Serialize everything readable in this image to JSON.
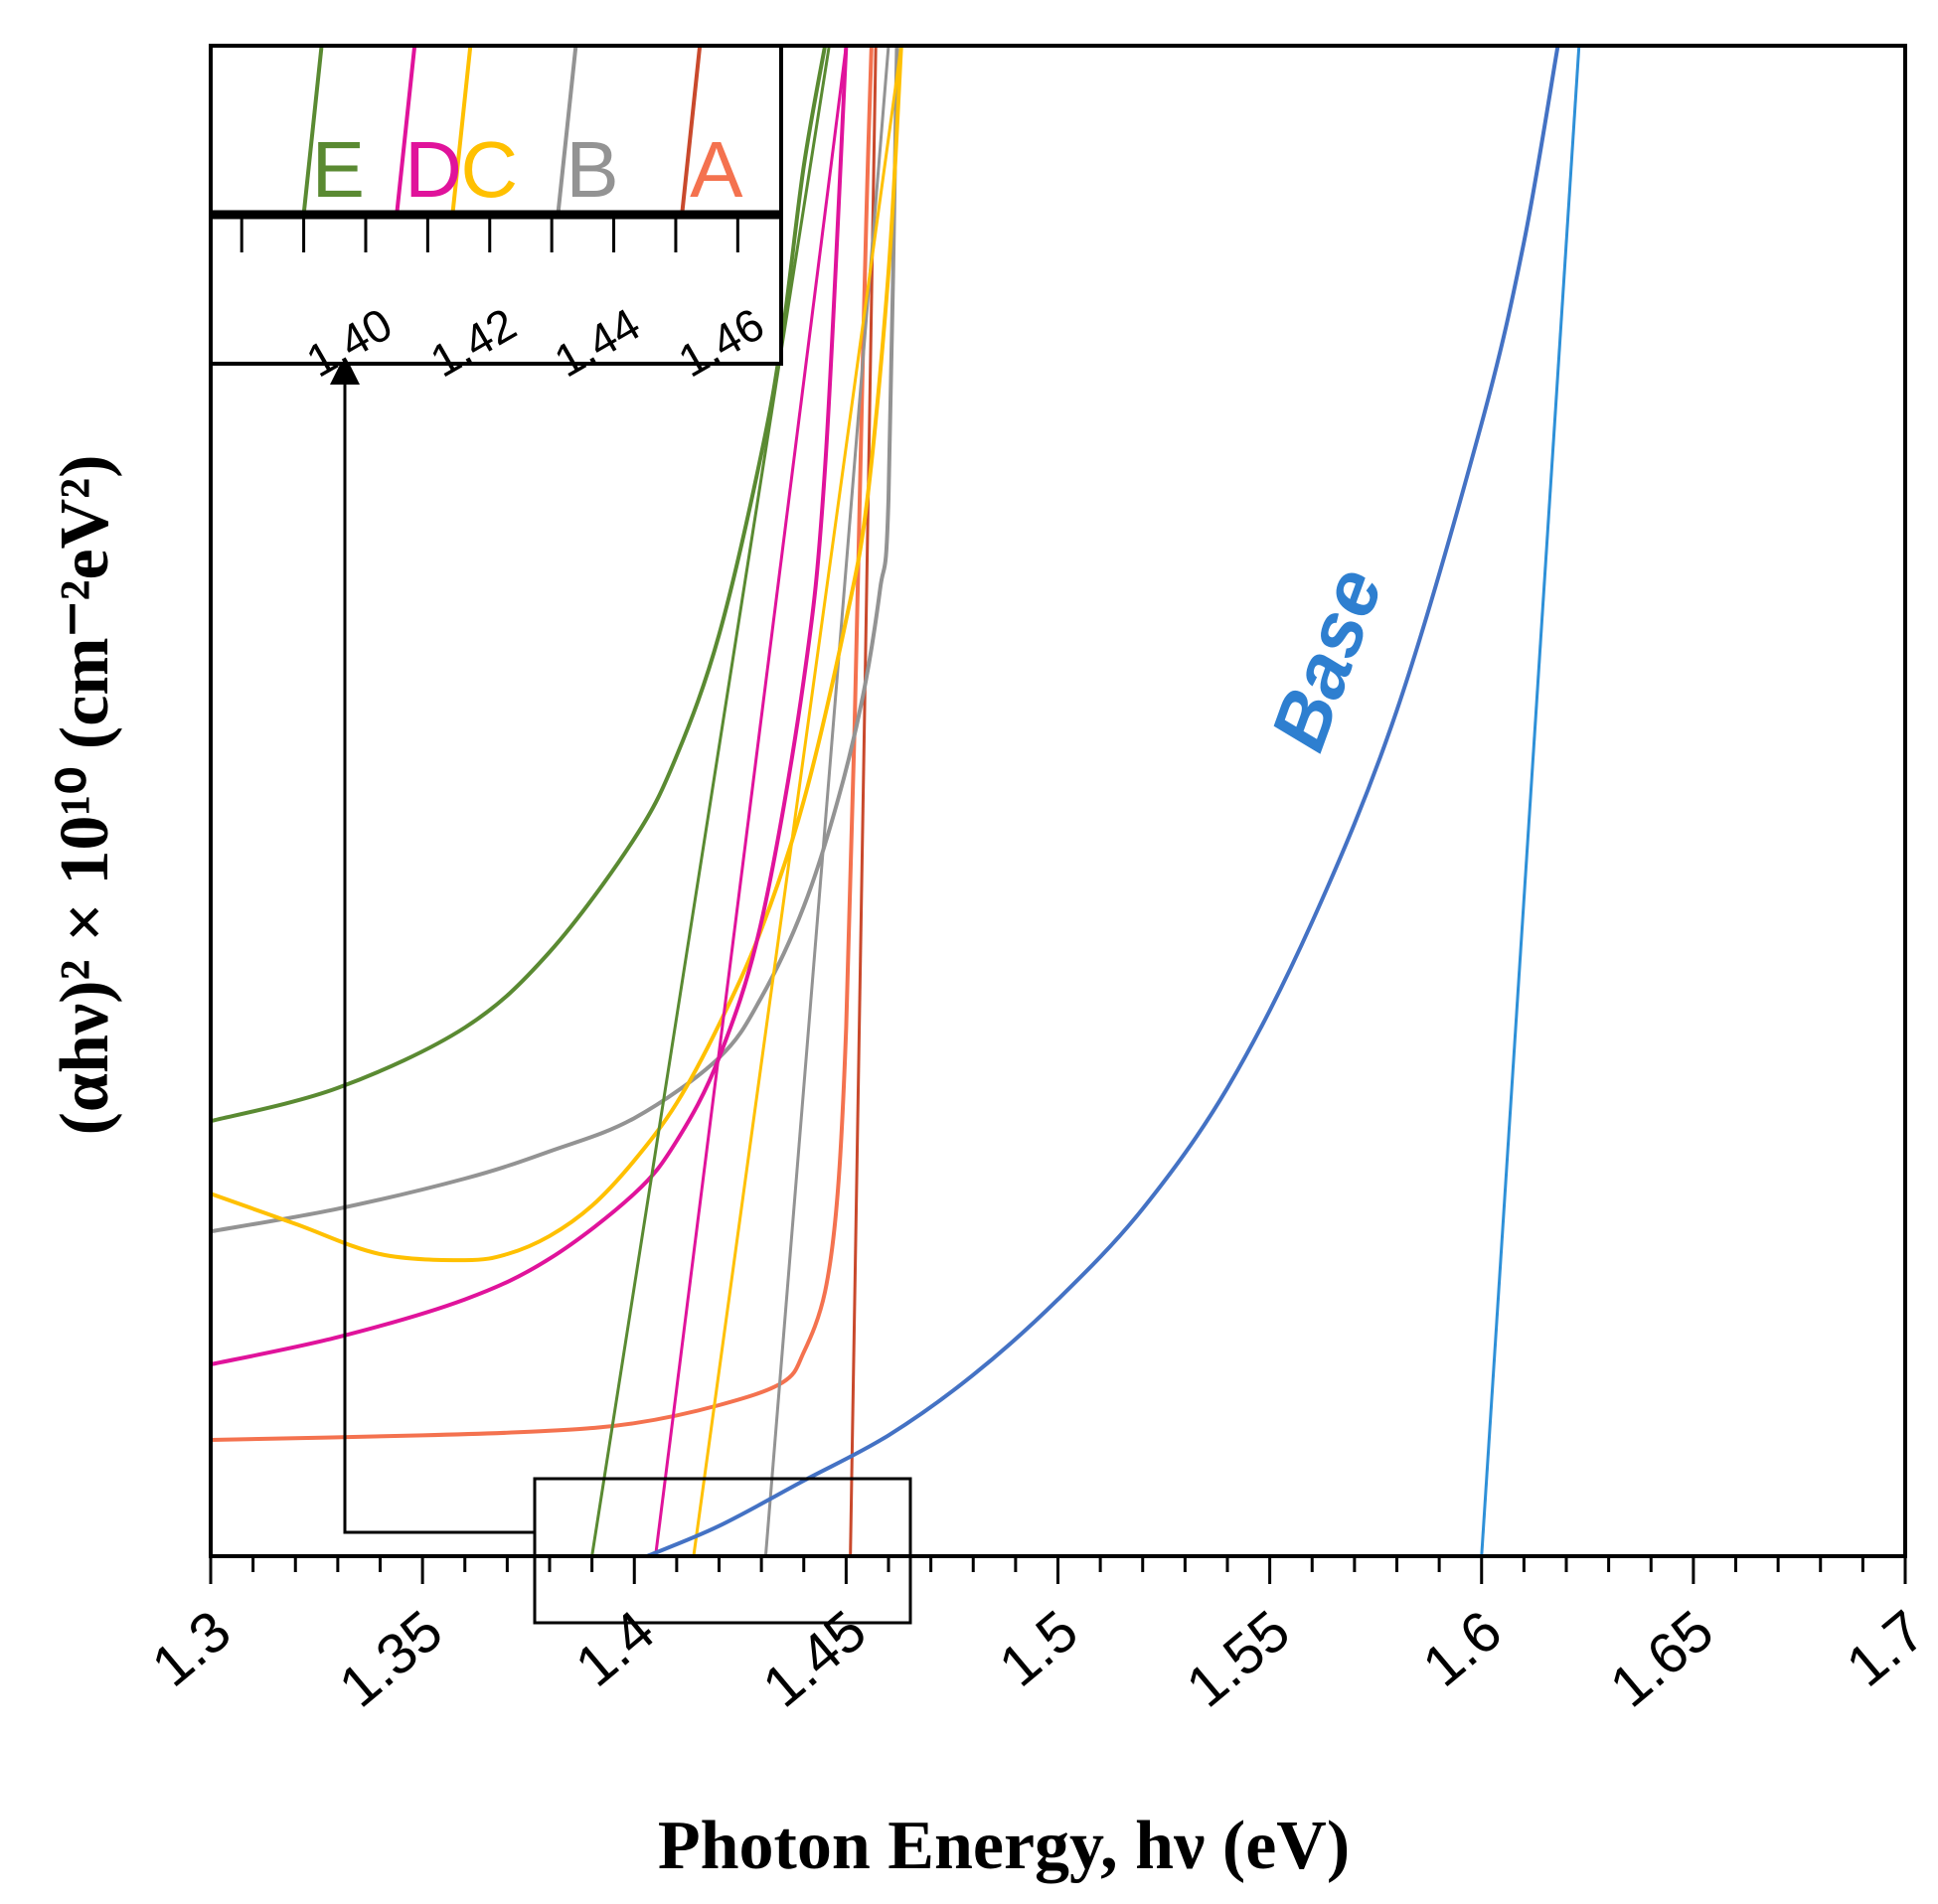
{
  "chart_data": {
    "type": "line",
    "title": "",
    "xlabel": "Photon Energy, hν (eV)",
    "ylabel": "(αhν)² × 10¹⁰ (cm⁻²eV²)",
    "xlim": [
      1.3,
      1.7
    ],
    "x_ticks": [
      "1.3",
      "1.35",
      "1.4",
      "1.45",
      "1.5",
      "1.55",
      "1.6",
      "1.65",
      "1.7"
    ],
    "x_tick_values": [
      1.3,
      1.35,
      1.4,
      1.45,
      1.5,
      1.55,
      1.6,
      1.65,
      1.7
    ],
    "y_ticks": [],
    "ylim": [
      0,
      1
    ],
    "grid": false,
    "series": [
      {
        "name": "A",
        "color": "#f4724f",
        "tangent_color": "#c9492c",
        "x": [
          1.3,
          1.35,
          1.38,
          1.4,
          1.42,
          1.435,
          1.44,
          1.445,
          1.448,
          1.45,
          1.452,
          1.454,
          1.455,
          1.456
        ],
        "y": [
          0.077,
          0.08,
          0.083,
          0.088,
          0.1,
          0.115,
          0.135,
          0.175,
          0.24,
          0.35,
          0.55,
          0.8,
          0.91,
          1.0
        ],
        "tangent_x": [
          1.451,
          1.457
        ],
        "tangent_y": [
          0,
          1.0
        ],
        "bandgap": 1.451
      },
      {
        "name": "B",
        "color": "#939393",
        "tangent_color": "#939393",
        "x": [
          1.3,
          1.33,
          1.36,
          1.38,
          1.4,
          1.42,
          1.43,
          1.44,
          1.448,
          1.454,
          1.458,
          1.46,
          1.462
        ],
        "y": [
          0.215,
          0.23,
          0.25,
          0.268,
          0.29,
          0.33,
          0.37,
          0.43,
          0.5,
          0.57,
          0.64,
          0.7,
          1.0
        ],
        "tangent_x": [
          1.431,
          1.46
        ],
        "tangent_y": [
          0,
          1.0
        ],
        "bandgap": 1.431
      },
      {
        "name": "C",
        "color": "#ffc000",
        "tangent_color": "#ffc000",
        "x": [
          1.3,
          1.32,
          1.34,
          1.36,
          1.37,
          1.38,
          1.39,
          1.4,
          1.41,
          1.42,
          1.43,
          1.44,
          1.45,
          1.455,
          1.46,
          1.463
        ],
        "y": [
          0.24,
          0.22,
          0.2,
          0.196,
          0.2,
          0.212,
          0.232,
          0.262,
          0.3,
          0.352,
          0.415,
          0.5,
          0.62,
          0.7,
          0.85,
          1.0
        ],
        "tangent_x": [
          1.414,
          1.463
        ],
        "tangent_y": [
          0,
          1.0
        ],
        "bandgap": 1.414
      },
      {
        "name": "D",
        "color": "#e0139b",
        "tangent_color": "#e0139b",
        "x": [
          1.3,
          1.33,
          1.36,
          1.38,
          1.4,
          1.41,
          1.42,
          1.43,
          1.44,
          1.445,
          1.45
        ],
        "y": [
          0.127,
          0.145,
          0.17,
          0.197,
          0.24,
          0.275,
          0.33,
          0.42,
          0.58,
          0.72,
          1.0
        ],
        "tangent_x": [
          1.405,
          1.45
        ],
        "tangent_y": [
          0,
          1.0
        ],
        "bandgap": 1.405
      },
      {
        "name": "E",
        "color": "#5a8a32",
        "tangent_color": "#5a8a32",
        "x": [
          1.3,
          1.33,
          1.36,
          1.38,
          1.4,
          1.41,
          1.42,
          1.43,
          1.435,
          1.44,
          1.445
        ],
        "y": [
          0.288,
          0.31,
          0.35,
          0.4,
          0.475,
          0.53,
          0.61,
          0.73,
          0.81,
          0.92,
          1.0
        ],
        "tangent_x": [
          1.39,
          1.446
        ],
        "tangent_y": [
          0,
          1.0
        ],
        "bandgap": 1.39
      },
      {
        "name": "Base",
        "color": "#4472c4",
        "tangent_color": "#2e90d8",
        "x": [
          1.403,
          1.42,
          1.44,
          1.46,
          1.48,
          1.5,
          1.52,
          1.54,
          1.56,
          1.58,
          1.6,
          1.61,
          1.618
        ],
        "y": [
          0,
          0.02,
          0.05,
          0.08,
          0.12,
          0.17,
          0.23,
          0.31,
          0.42,
          0.56,
          0.75,
          0.87,
          1.0
        ],
        "tangent_x": [
          1.6,
          1.623
        ],
        "tangent_y": [
          0,
          1.0
        ],
        "bandgap": 1.6
      }
    ],
    "annotations": {
      "base_label": "Base",
      "zoom_box_x": [
        1.377,
        1.466
      ],
      "inset": {
        "xlim": [
          1.375,
          1.467
        ],
        "ticks": [
          "1.40",
          "1.42",
          "1.44",
          "1.46"
        ],
        "tick_values": [
          1.4,
          1.42,
          1.44,
          1.46
        ],
        "minor_tick_step": 0.01,
        "letters": [
          "E",
          "D",
          "C",
          "B",
          "A"
        ]
      }
    }
  }
}
